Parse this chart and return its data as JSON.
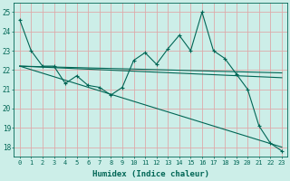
{
  "xlabel": "Humidex (Indice chaleur)",
  "bg_color": "#cceee8",
  "line_color": "#006655",
  "grid_color": "#ddaaaa",
  "xlim": [
    -0.5,
    23.5
  ],
  "ylim": [
    17.5,
    25.5
  ],
  "yticks": [
    18,
    19,
    20,
    21,
    22,
    23,
    24,
    25
  ],
  "xticks": [
    0,
    1,
    2,
    3,
    4,
    5,
    6,
    7,
    8,
    9,
    10,
    11,
    12,
    13,
    14,
    15,
    16,
    17,
    18,
    19,
    20,
    21,
    22,
    23
  ],
  "series1": [
    24.6,
    23.0,
    22.2,
    22.2,
    21.3,
    21.7,
    21.2,
    21.1,
    20.7,
    21.1,
    22.5,
    22.9,
    22.3,
    23.1,
    23.8,
    23.0,
    25.0,
    23.0,
    22.6,
    21.8,
    21.0,
    19.1,
    18.2,
    17.8
  ],
  "trend_lines": [
    [
      0,
      22.2,
      23,
      21.85
    ],
    [
      0,
      22.2,
      23,
      21.6
    ],
    [
      0,
      22.2,
      23,
      18.0
    ]
  ]
}
